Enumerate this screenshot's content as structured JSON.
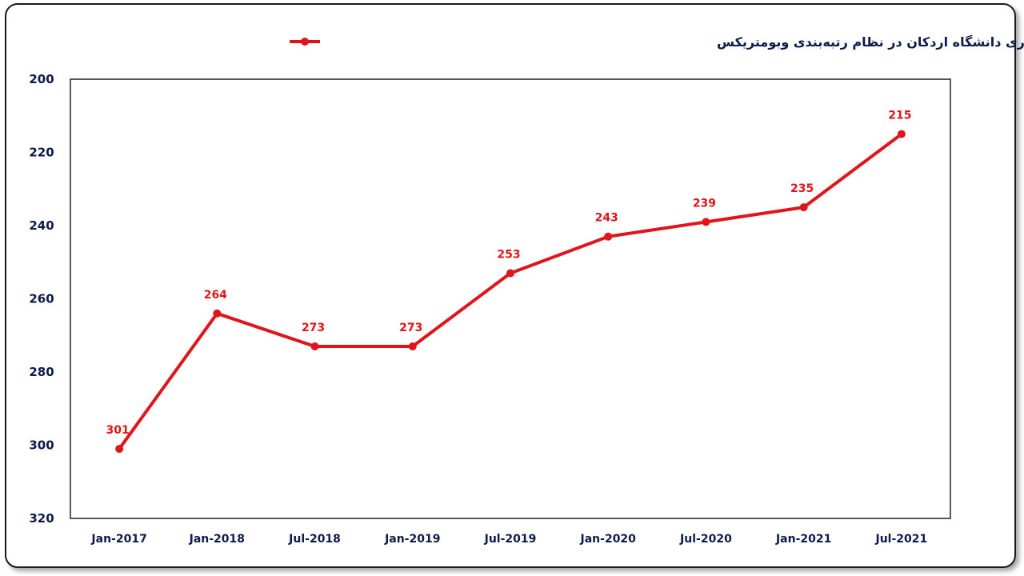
{
  "chart_data": {
    "type": "line",
    "title": "",
    "xlabel": "",
    "ylabel": "",
    "categories": [
      "Jan-2017",
      "Jan-2018",
      "Jul-2018",
      "Jan-2019",
      "Jul-2019",
      "Jan-2020",
      "Jul-2020",
      "Jan-2021",
      "Jul-2021"
    ],
    "series": [
      {
        "name": "رتبه کشوری دانشگاه اردکان در نظام رتبه‌بندی وبومتریکس",
        "values": [
          301,
          264,
          273,
          273,
          253,
          243,
          239,
          235,
          215
        ],
        "color": "#e0151b"
      }
    ],
    "ylim": [
      320,
      200
    ],
    "y_axis_inverted": true,
    "y_ticks": [
      200,
      220,
      240,
      260,
      280,
      300,
      320
    ],
    "legend_position": "top-center",
    "grid": false,
    "data_labels": true,
    "colors": {
      "line": "#e0151b",
      "axis_text": "#0d1b4c",
      "plot_border": "#222222"
    }
  }
}
